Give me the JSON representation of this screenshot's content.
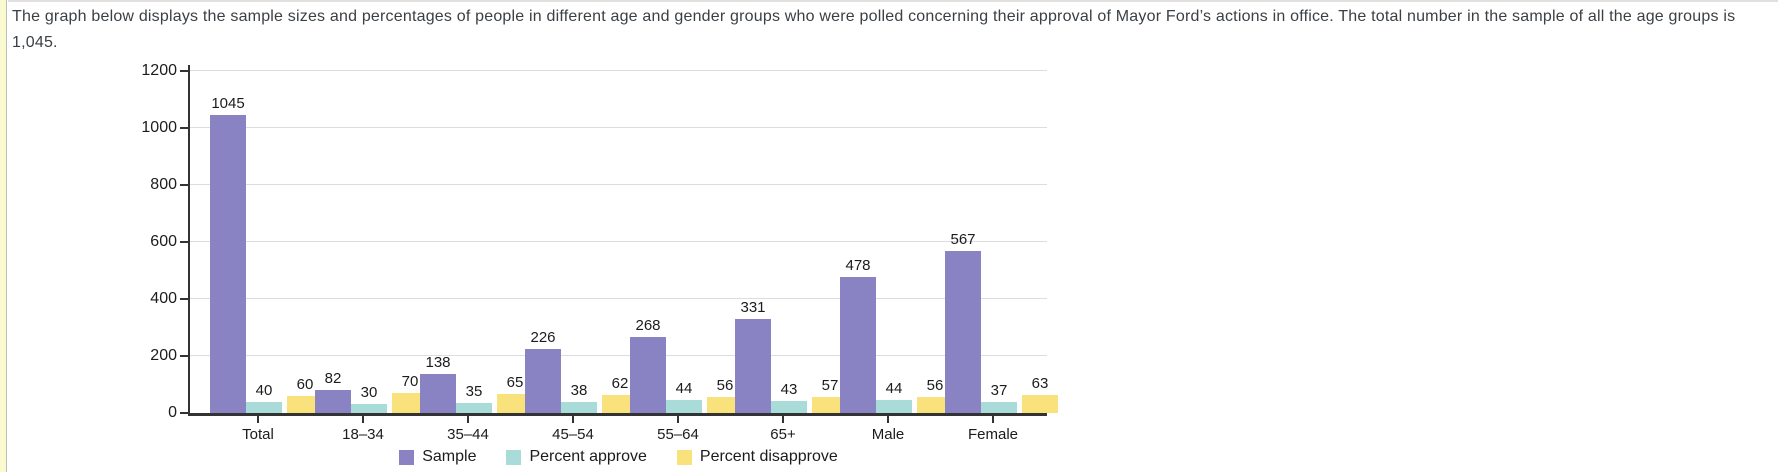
{
  "page": {
    "intro_text": "The graph below displays the sample sizes and percentages of people in different age and gender groups who were polled concerning their approval of Mayor Ford’s actions in office. The total number in the sample of all the age groups is 1,045.",
    "accent_colors": {
      "left_stripe": "#fafad0",
      "stripe_line": "#bcbcbc",
      "top_border": "#e0e0e0"
    }
  },
  "chart_data": {
    "type": "bar",
    "title": "",
    "xlabel": "",
    "ylabel": "",
    "categories": [
      "Total",
      "18–34",
      "35–44",
      "45–54",
      "55–64",
      "65+",
      "Male",
      "Female"
    ],
    "series": [
      {
        "name": "Sample",
        "color": "#8983c4",
        "values": [
          1045,
          82,
          138,
          226,
          268,
          331,
          478,
          567
        ]
      },
      {
        "name": "Percent approve",
        "color": "#a9dcd8",
        "values": [
          40,
          30,
          35,
          38,
          44,
          43,
          44,
          37
        ]
      },
      {
        "name": "Percent disapprove",
        "color": "#f9e17b",
        "values": [
          60,
          70,
          65,
          62,
          56,
          57,
          56,
          63
        ]
      }
    ],
    "ylim": [
      0,
      1200
    ],
    "yticks": [
      0,
      200,
      400,
      600,
      800,
      1000,
      1200
    ],
    "grid": true,
    "value_labels": true,
    "legend_position": "bottom"
  }
}
